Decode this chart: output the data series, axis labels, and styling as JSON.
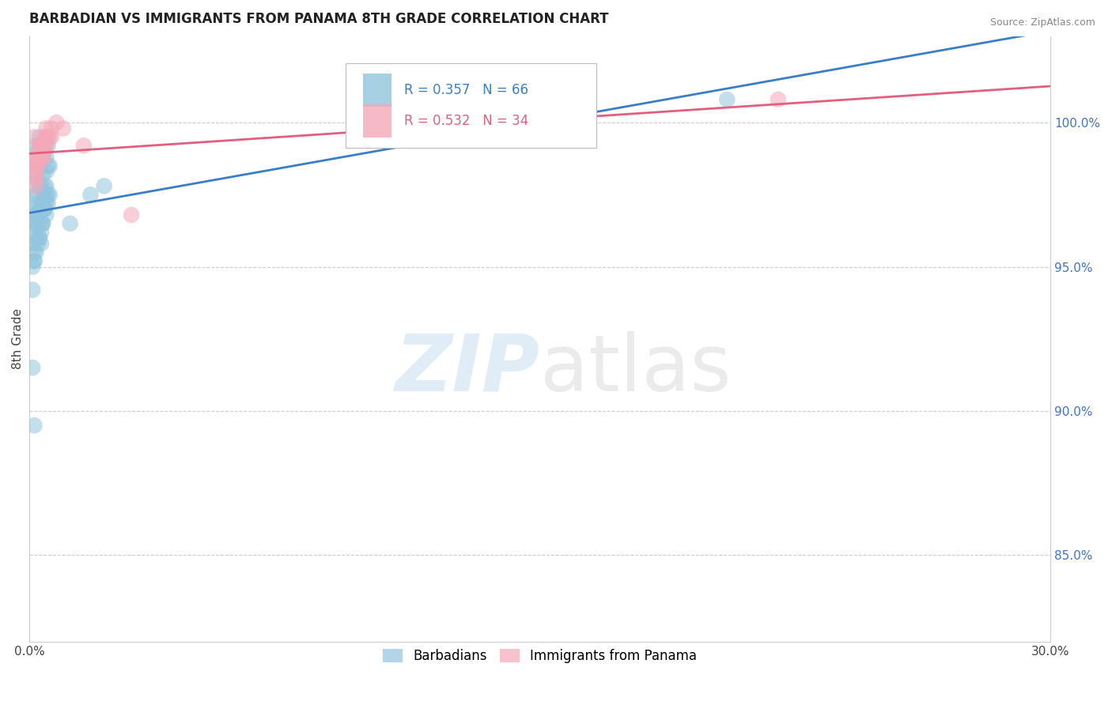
{
  "title": "BARBADIAN VS IMMIGRANTS FROM PANAMA 8TH GRADE CORRELATION CHART",
  "source": "Source: ZipAtlas.com",
  "ylabel": "8th Grade",
  "right_yticks": [
    85.0,
    90.0,
    95.0,
    100.0
  ],
  "xlim": [
    0.0,
    30.0
  ],
  "ylim": [
    82.0,
    103.0
  ],
  "blue_R": 0.357,
  "blue_N": 66,
  "pink_R": 0.532,
  "pink_N": 34,
  "blue_color": "#92c5de",
  "pink_color": "#f4a9b8",
  "blue_line_color": "#3a7dc9",
  "pink_line_color": "#e06080",
  "blue_points_x": [
    0.15,
    0.2,
    0.25,
    0.3,
    0.35,
    0.4,
    0.45,
    0.5,
    0.55,
    0.6,
    0.15,
    0.2,
    0.25,
    0.3,
    0.35,
    0.4,
    0.45,
    0.5,
    0.55,
    0.6,
    0.1,
    0.15,
    0.2,
    0.25,
    0.3,
    0.35,
    0.4,
    0.45,
    0.5,
    0.1,
    0.1,
    0.15,
    0.2,
    0.25,
    0.3,
    0.35,
    0.4,
    0.45,
    0.5,
    0.55,
    0.1,
    0.15,
    0.2,
    0.3,
    0.35,
    0.4,
    0.45,
    0.5,
    0.55,
    0.15,
    1.8,
    2.2,
    0.1,
    0.15,
    0.2,
    0.25,
    1.2,
    0.3,
    0.35,
    0.1,
    0.4,
    0.5,
    0.45,
    20.5,
    0.1,
    0.15
  ],
  "blue_points_y": [
    98.5,
    99.2,
    99.0,
    99.5,
    98.8,
    98.2,
    99.0,
    98.8,
    99.2,
    98.5,
    97.5,
    98.2,
    98.0,
    98.5,
    97.8,
    97.2,
    97.8,
    98.3,
    98.5,
    97.5,
    97.0,
    96.8,
    97.5,
    97.2,
    97.8,
    97.0,
    97.2,
    97.5,
    97.8,
    96.5,
    96.2,
    96.5,
    96.8,
    96.5,
    97.0,
    96.2,
    96.5,
    97.0,
    97.2,
    97.5,
    95.8,
    95.5,
    96.0,
    96.0,
    95.8,
    96.5,
    97.0,
    96.8,
    97.2,
    95.2,
    97.5,
    97.8,
    95.0,
    95.2,
    95.5,
    95.8,
    96.5,
    96.0,
    96.5,
    94.2,
    97.0,
    97.5,
    97.0,
    100.8,
    91.5,
    89.5
  ],
  "pink_points_x": [
    0.15,
    0.5,
    0.8,
    0.3,
    0.45,
    0.65,
    0.25,
    0.4,
    0.55,
    0.2,
    0.3,
    0.5,
    0.15,
    0.25,
    0.4,
    1.0,
    0.2,
    0.45,
    0.6,
    0.35,
    1.6,
    0.25,
    0.4,
    0.2,
    0.5,
    0.65,
    0.35,
    0.45,
    0.15,
    3.0,
    0.25,
    0.4,
    22.0,
    0.2
  ],
  "pink_points_y": [
    99.5,
    99.8,
    100.0,
    99.2,
    99.5,
    99.8,
    98.8,
    99.2,
    99.5,
    98.8,
    99.2,
    99.5,
    98.5,
    98.8,
    99.0,
    99.8,
    98.2,
    99.2,
    99.5,
    98.8,
    99.2,
    98.5,
    98.8,
    98.0,
    99.2,
    99.5,
    98.8,
    99.0,
    98.2,
    96.8,
    98.5,
    98.8,
    100.8,
    97.8
  ]
}
